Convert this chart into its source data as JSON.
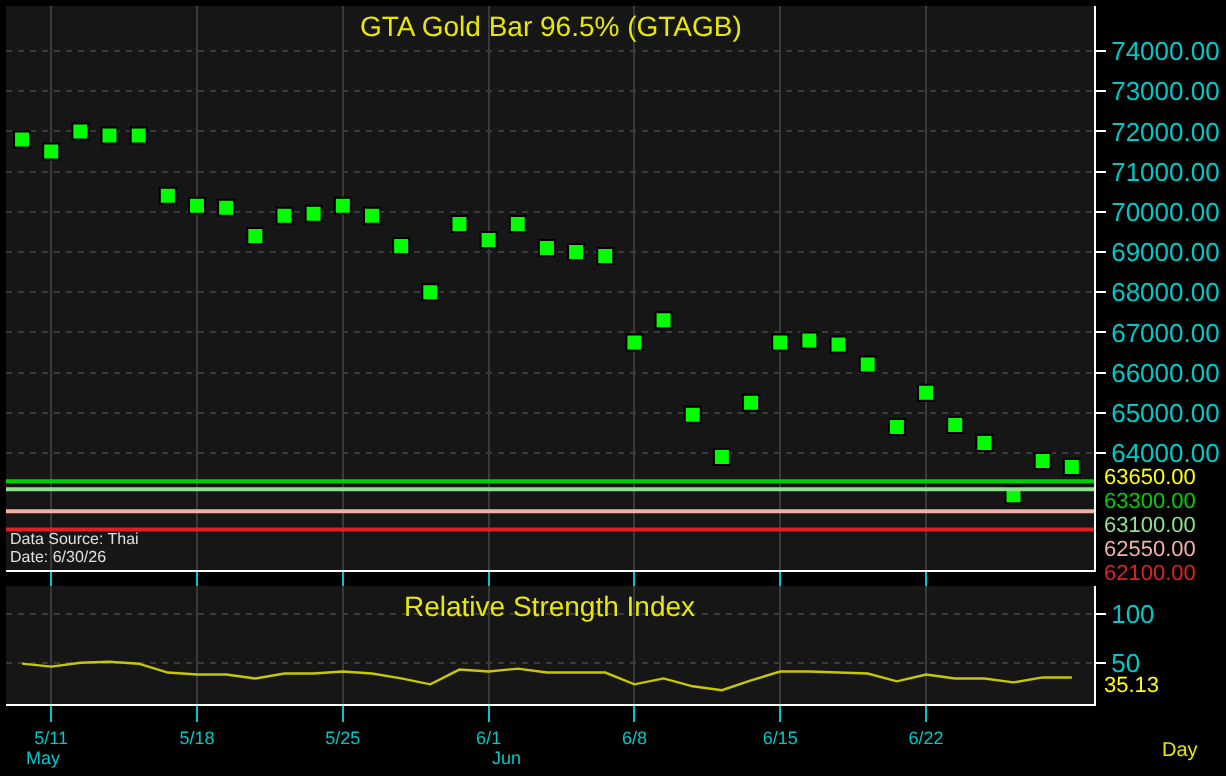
{
  "chart_data": [
    {
      "type": "scatter",
      "title": "GTA Gold Bar 96.5% (GTAGB)",
      "categories": [
        null,
        null,
        null,
        null,
        null,
        null,
        null,
        null,
        null,
        null,
        null,
        null,
        null,
        null,
        null,
        null,
        null,
        null,
        null,
        null,
        null,
        null,
        null,
        null,
        null,
        null,
        null,
        null,
        null,
        null,
        null,
        null,
        null,
        null,
        null,
        null,
        null
      ],
      "series": [
        {
          "color": "#00ff00",
          "values": [
            71800,
            71500,
            72000,
            71900,
            71900,
            70400,
            70150,
            70100,
            69400,
            69900,
            69950,
            70150,
            69900,
            69150,
            68000,
            69700,
            69300,
            69700,
            69100,
            69000,
            68900,
            66750,
            67300,
            64950,
            63900,
            65250,
            66750,
            66800,
            66700,
            66200,
            64650,
            65500,
            64700,
            64250,
            62950,
            63800,
            63650
          ]
        }
      ],
      "marker": "square",
      "ylim": [
        61090,
        75120
      ],
      "yticks": [
        {
          "value": 64000,
          "label": "64000.00"
        },
        {
          "value": 65000,
          "label": "65000.00"
        },
        {
          "value": 66000,
          "label": "66000.00"
        },
        {
          "value": 67000,
          "label": "67000.00"
        },
        {
          "value": 68000,
          "label": "68000.00"
        },
        {
          "value": 69000,
          "label": "69000.00"
        },
        {
          "value": 70000,
          "label": "70000.00"
        },
        {
          "value": 71000,
          "label": "71000.00"
        },
        {
          "value": 72000,
          "label": "72000.00"
        },
        {
          "value": 73000,
          "label": "73000.00"
        },
        {
          "value": 74000,
          "label": "74000.00"
        }
      ],
      "tick_labels": "y",
      "grid": true,
      "ref_lines": [
        {
          "axis": "y",
          "value": 63300,
          "label": "63300.00",
          "color": "#00d000"
        },
        {
          "axis": "y",
          "value": 63100,
          "label": "63100.00",
          "color": "#90e090"
        },
        {
          "axis": "y",
          "value": 62550,
          "label": "62550.00",
          "color": "#f0b0a8"
        },
        {
          "axis": "y",
          "value": 62100,
          "label": "62100.00",
          "color": "#e02020"
        }
      ],
      "annotations": [
        "63650.00",
        "Data Source: Thai",
        "Date: 6/30/26"
      ]
    },
    {
      "type": "line",
      "title": "Relative Strength Index",
      "xlabel": "Day",
      "categories": [
        null,
        "5/11",
        null,
        null,
        null,
        null,
        "5/18",
        null,
        null,
        null,
        null,
        "5/25",
        null,
        null,
        null,
        null,
        "6/1",
        null,
        null,
        null,
        null,
        "6/8",
        null,
        null,
        null,
        null,
        "6/15",
        null,
        null,
        null,
        null,
        "6/22",
        null,
        null,
        null,
        null,
        null
      ],
      "series": [
        {
          "color": "#c8c800",
          "values": [
            49,
            46,
            50,
            51,
            49,
            40,
            38,
            38,
            34,
            39,
            39,
            41,
            39,
            34,
            28,
            43,
            41,
            44,
            40,
            40,
            40,
            28,
            34,
            26,
            22,
            32,
            41,
            41,
            40,
            39,
            31,
            38,
            34,
            34,
            30,
            35,
            35
          ]
        }
      ],
      "ylim": [
        8,
        128
      ],
      "yticks": [
        50,
        100
      ],
      "grid": true,
      "marker": "none",
      "annotations": [
        "35.13",
        "May",
        "Jun"
      ]
    }
  ]
}
